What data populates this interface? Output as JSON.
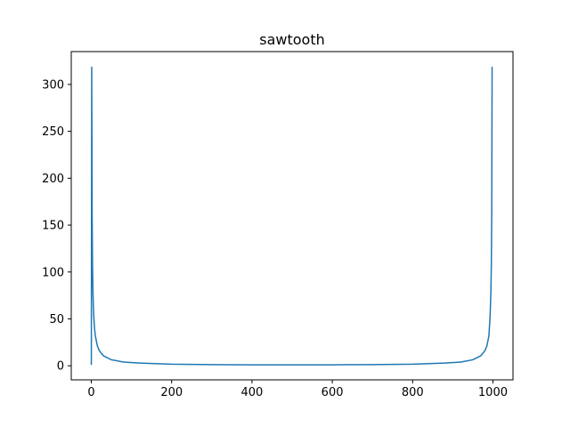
{
  "chart_data": {
    "type": "line",
    "title": "sawtooth",
    "xlabel": "",
    "ylabel": "",
    "xlim": [
      -50,
      1050
    ],
    "ylim": [
      -15,
      335
    ],
    "x_ticks": [
      0,
      200,
      400,
      600,
      800,
      1000
    ],
    "y_ticks": [
      0,
      50,
      100,
      150,
      200,
      250,
      300
    ],
    "x_tick_labels": [
      "0",
      "200",
      "400",
      "600",
      "800",
      "1000"
    ],
    "y_tick_labels": [
      "0",
      "50",
      "100",
      "150",
      "200",
      "250",
      "300"
    ],
    "grid": false,
    "series": [
      {
        "color": "#1f77b4",
        "x": [
          0,
          1,
          2,
          3,
          4,
          5,
          6,
          8,
          10,
          15,
          20,
          30,
          50,
          80,
          120,
          200,
          300,
          400,
          500,
          600,
          700,
          800,
          880,
          920,
          950,
          970,
          980,
          985,
          990,
          993,
          995,
          996,
          997,
          998,
          999
        ],
        "y": [
          1.0,
          318.3,
          159.2,
          106.1,
          79.6,
          63.7,
          53.1,
          39.8,
          31.9,
          21.3,
          16.0,
          10.7,
          6.4,
          4.0,
          2.9,
          1.7,
          1.24,
          1.05,
          1.0,
          1.05,
          1.24,
          1.7,
          2.9,
          4.0,
          6.4,
          10.7,
          16.0,
          21.3,
          31.9,
          53.1,
          79.6,
          106.1,
          159.2,
          318.3,
          318.3
        ]
      }
    ]
  }
}
